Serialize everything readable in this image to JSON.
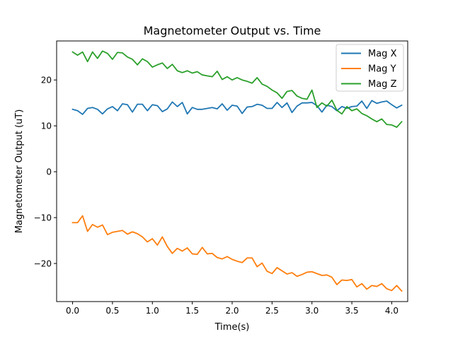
{
  "chart_data": {
    "type": "line",
    "title": "Magnetometer Output vs. Time",
    "xlabel": "Time(s)",
    "ylabel": "Magnetometer Output (uT)",
    "xlim": [
      -0.2,
      4.2
    ],
    "ylim": [
      -28.3,
      28.5
    ],
    "xticks": [
      0.0,
      0.5,
      1.0,
      1.5,
      2.0,
      2.5,
      3.0,
      3.5,
      4.0
    ],
    "xtick_labels": [
      "0.0",
      "0.5",
      "1.0",
      "1.5",
      "2.0",
      "2.5",
      "3.0",
      "3.5",
      "4.0"
    ],
    "yticks": [
      -20,
      -10,
      0,
      10,
      20
    ],
    "ytick_labels": [
      "−20",
      "−10",
      "0",
      "10",
      "20"
    ],
    "grid": false,
    "legend_position": "top-right",
    "x_start": 0.0,
    "x_step": 0.0625,
    "series": [
      {
        "name": "Mag X",
        "color": "#1f77b4",
        "values": [
          13.6,
          13.3,
          12.5,
          13.8,
          14.0,
          13.6,
          12.6,
          13.7,
          14.2,
          13.3,
          14.8,
          14.6,
          13.0,
          14.7,
          14.7,
          13.3,
          14.6,
          14.4,
          13.1,
          13.7,
          15.2,
          14.2,
          15.1,
          12.6,
          14.0,
          13.6,
          13.6,
          13.8,
          14.0,
          13.7,
          14.8,
          13.4,
          14.5,
          14.3,
          12.7,
          14.1,
          14.2,
          14.7,
          14.5,
          13.8,
          13.8,
          15.1,
          14.0,
          15.0,
          12.9,
          14.3,
          15.0,
          15.0,
          15.1,
          14.4,
          13.0,
          14.5,
          14.2,
          13.3,
          14.2,
          13.8,
          14.2,
          14.3,
          15.4,
          13.8,
          15.5,
          14.9,
          15.2,
          15.4,
          14.6,
          13.9,
          14.5
        ]
      },
      {
        "name": "Mag Y",
        "color": "#ff7f0e",
        "values": [
          -11.1,
          -11.1,
          -9.6,
          -13.0,
          -11.5,
          -12.1,
          -11.6,
          -13.7,
          -13.2,
          -13.0,
          -12.8,
          -13.6,
          -13.1,
          -13.5,
          -14.2,
          -15.3,
          -14.6,
          -16.0,
          -14.2,
          -16.3,
          -17.8,
          -16.7,
          -17.3,
          -16.6,
          -17.9,
          -18.0,
          -16.5,
          -17.9,
          -17.8,
          -18.7,
          -19.0,
          -18.5,
          -19.1,
          -19.5,
          -19.8,
          -18.8,
          -18.8,
          -20.7,
          -19.9,
          -21.7,
          -22.2,
          -20.9,
          -21.6,
          -22.3,
          -22.0,
          -22.8,
          -22.4,
          -21.9,
          -21.8,
          -22.2,
          -22.6,
          -22.5,
          -23.0,
          -24.6,
          -23.6,
          -23.7,
          -23.5,
          -25.1,
          -24.4,
          -25.6,
          -24.8,
          -25.0,
          -24.4,
          -25.5,
          -25.9,
          -24.8,
          -26.0
        ]
      },
      {
        "name": "Mag Z",
        "color": "#2ca02c",
        "values": [
          26.1,
          25.4,
          26.1,
          24.0,
          26.1,
          24.7,
          26.3,
          25.8,
          24.5,
          26.0,
          25.9,
          25.0,
          24.5,
          23.3,
          24.6,
          24.0,
          22.8,
          23.3,
          23.7,
          22.5,
          23.4,
          22.0,
          21.6,
          22.0,
          21.5,
          21.8,
          21.1,
          20.9,
          20.7,
          21.9,
          20.1,
          20.7,
          20.0,
          20.5,
          20.0,
          19.7,
          19.3,
          20.5,
          19.1,
          18.6,
          17.8,
          17.2,
          16.0,
          17.5,
          17.7,
          16.5,
          16.0,
          15.8,
          17.8,
          14.0,
          15.0,
          14.3,
          15.6,
          13.4,
          12.6,
          14.2,
          13.3,
          13.7,
          12.7,
          12.2,
          11.5,
          10.9,
          11.5,
          10.3,
          10.2,
          9.7,
          10.9
        ]
      }
    ]
  }
}
